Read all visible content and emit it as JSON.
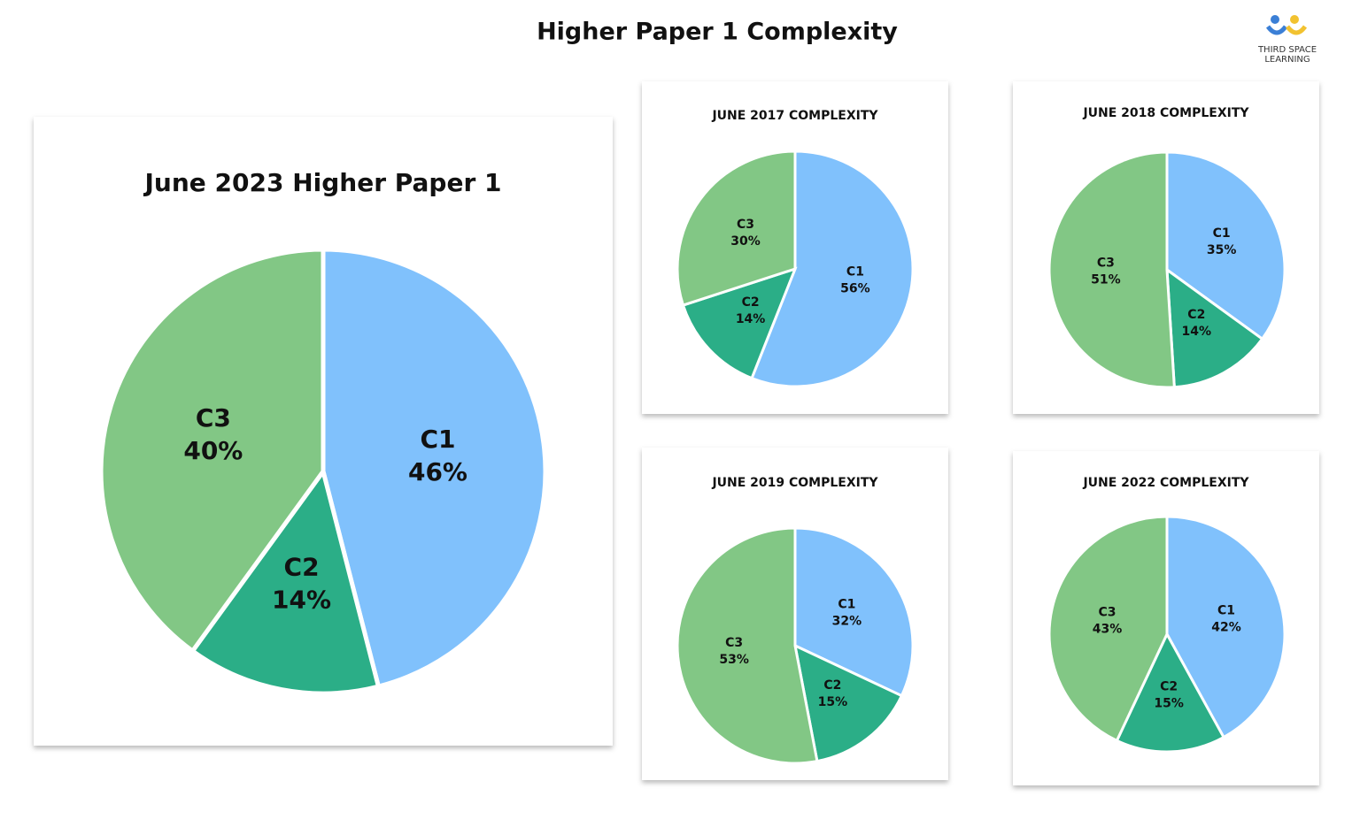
{
  "title": "Higher Paper 1 Complexity",
  "logo": [
    "THIRD SPACE",
    "LEARNING"
  ],
  "chart_data": [
    {
      "type": "pie",
      "title": "June 2023 Higher Paper 1",
      "categories": [
        "C1",
        "C2",
        "C3"
      ],
      "values": [
        46,
        14,
        40
      ],
      "value_labels": [
        "46%",
        "14%",
        "40%"
      ],
      "colors": [
        "#80c1fc",
        "#2bae87",
        "#82c785"
      ]
    },
    {
      "type": "pie",
      "title": "JUNE 2017 COMPLEXITY",
      "categories": [
        "C1",
        "C2",
        "C3"
      ],
      "values": [
        56,
        14,
        30
      ],
      "value_labels": [
        "56%",
        "14%",
        "30%"
      ],
      "colors": [
        "#80c1fc",
        "#2bae87",
        "#82c785"
      ]
    },
    {
      "type": "pie",
      "title": "JUNE 2018 COMPLEXITY",
      "categories": [
        "C1",
        "C2",
        "C3"
      ],
      "values": [
        35,
        14,
        51
      ],
      "value_labels": [
        "35%",
        "14%",
        "51%"
      ],
      "colors": [
        "#80c1fc",
        "#2bae87",
        "#82c785"
      ]
    },
    {
      "type": "pie",
      "title": "JUNE 2019 COMPLEXITY",
      "categories": [
        "C1",
        "C2",
        "C3"
      ],
      "values": [
        32,
        15,
        53
      ],
      "value_labels": [
        "32%",
        "15%",
        "53%"
      ],
      "colors": [
        "#80c1fc",
        "#2bae87",
        "#82c785"
      ]
    },
    {
      "type": "pie",
      "title": "JUNE 2022 COMPLEXITY",
      "categories": [
        "C1",
        "C2",
        "C3"
      ],
      "values": [
        42,
        15,
        43
      ],
      "value_labels": [
        "42%",
        "15%",
        "43%"
      ],
      "colors": [
        "#80c1fc",
        "#2bae87",
        "#82c785"
      ]
    }
  ]
}
